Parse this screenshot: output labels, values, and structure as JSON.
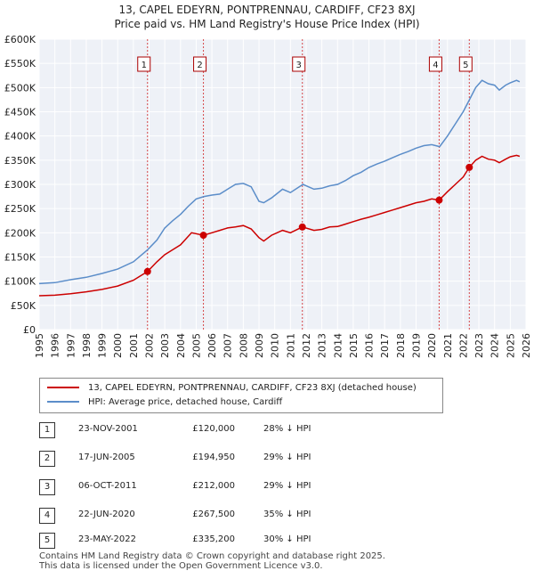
{
  "title_line1": "13, CAPEL EDEYRN, PONTPRENNAU, CARDIFF, CF23 8XJ",
  "title_line2": "Price paid vs. HM Land Registry's House Price Index (HPI)",
  "legend": {
    "property_label": "13, CAPEL EDEYRN, PONTPRENNAU, CARDIFF, CF23 8XJ (detached house)",
    "hpi_label": "HPI: Average price, detached house, Cardiff"
  },
  "colors": {
    "property": "#cc0000",
    "hpi": "#5b8dc9",
    "event_line": "#cc0000"
  },
  "chart_data": {
    "type": "line",
    "ylim": [
      0,
      600000
    ],
    "xlim": [
      1995,
      2026
    ],
    "y_ticks": [
      {
        "value": 0,
        "label": "£0"
      },
      {
        "value": 50000,
        "label": "£50K"
      },
      {
        "value": 100000,
        "label": "£100K"
      },
      {
        "value": 150000,
        "label": "£150K"
      },
      {
        "value": 200000,
        "label": "£200K"
      },
      {
        "value": 250000,
        "label": "£250K"
      },
      {
        "value": 300000,
        "label": "£300K"
      },
      {
        "value": 350000,
        "label": "£350K"
      },
      {
        "value": 400000,
        "label": "£400K"
      },
      {
        "value": 450000,
        "label": "£450K"
      },
      {
        "value": 500000,
        "label": "£500K"
      },
      {
        "value": 550000,
        "label": "£550K"
      },
      {
        "value": 600000,
        "label": "£600K"
      }
    ],
    "x_ticks": [
      "1995",
      "1996",
      "1997",
      "1998",
      "1999",
      "2000",
      "2001",
      "2002",
      "2003",
      "2004",
      "2005",
      "2006",
      "2007",
      "2008",
      "2009",
      "2010",
      "2011",
      "2012",
      "2013",
      "2014",
      "2015",
      "2016",
      "2017",
      "2018",
      "2019",
      "2020",
      "2021",
      "2022",
      "2023",
      "2024",
      "2025",
      "2026"
    ],
    "series": [
      {
        "name": "HPI: Average price, detached house, Cardiff",
        "color": "#5b8dc9",
        "points": [
          [
            1995.0,
            95000
          ],
          [
            1996.0,
            97000
          ],
          [
            1997.0,
            103000
          ],
          [
            1998.0,
            108000
          ],
          [
            1999.0,
            116000
          ],
          [
            2000.0,
            125000
          ],
          [
            2001.0,
            140000
          ],
          [
            2001.9,
            165000
          ],
          [
            2002.5,
            185000
          ],
          [
            2003.0,
            210000
          ],
          [
            2003.5,
            225000
          ],
          [
            2004.0,
            238000
          ],
          [
            2004.5,
            255000
          ],
          [
            2005.0,
            270000
          ],
          [
            2005.5,
            275000
          ],
          [
            2006.0,
            278000
          ],
          [
            2006.5,
            280000
          ],
          [
            2007.0,
            290000
          ],
          [
            2007.5,
            300000
          ],
          [
            2008.0,
            302000
          ],
          [
            2008.5,
            295000
          ],
          [
            2009.0,
            265000
          ],
          [
            2009.3,
            262000
          ],
          [
            2009.8,
            272000
          ],
          [
            2010.5,
            290000
          ],
          [
            2011.0,
            283000
          ],
          [
            2011.8,
            300000
          ],
          [
            2012.5,
            290000
          ],
          [
            2013.0,
            292000
          ],
          [
            2013.5,
            297000
          ],
          [
            2014.0,
            300000
          ],
          [
            2014.5,
            308000
          ],
          [
            2015.0,
            318000
          ],
          [
            2015.5,
            325000
          ],
          [
            2016.0,
            335000
          ],
          [
            2016.5,
            342000
          ],
          [
            2017.0,
            348000
          ],
          [
            2017.5,
            355000
          ],
          [
            2018.0,
            362000
          ],
          [
            2018.5,
            368000
          ],
          [
            2019.0,
            375000
          ],
          [
            2019.5,
            380000
          ],
          [
            2020.0,
            382000
          ],
          [
            2020.5,
            378000
          ],
          [
            2021.0,
            400000
          ],
          [
            2021.5,
            425000
          ],
          [
            2022.0,
            450000
          ],
          [
            2022.4,
            475000
          ],
          [
            2022.8,
            500000
          ],
          [
            2023.2,
            515000
          ],
          [
            2023.6,
            508000
          ],
          [
            2024.0,
            505000
          ],
          [
            2024.3,
            495000
          ],
          [
            2024.7,
            505000
          ],
          [
            2025.0,
            510000
          ],
          [
            2025.4,
            515000
          ],
          [
            2025.6,
            512000
          ]
        ]
      },
      {
        "name": "13, CAPEL EDEYRN, PONTPRENNAU, CARDIFF, CF23 8XJ (detached house)",
        "color": "#cc0000",
        "points": [
          [
            1995.0,
            70000
          ],
          [
            1996.0,
            71000
          ],
          [
            1997.0,
            74000
          ],
          [
            1998.0,
            78000
          ],
          [
            1999.0,
            83000
          ],
          [
            2000.0,
            90000
          ],
          [
            2001.0,
            102000
          ],
          [
            2001.9,
            120000
          ],
          [
            2002.5,
            140000
          ],
          [
            2003.0,
            155000
          ],
          [
            2003.5,
            165000
          ],
          [
            2004.0,
            175000
          ],
          [
            2004.7,
            200000
          ],
          [
            2005.46,
            194950
          ],
          [
            2006.0,
            200000
          ],
          [
            2006.5,
            205000
          ],
          [
            2007.0,
            210000
          ],
          [
            2007.5,
            212000
          ],
          [
            2008.0,
            215000
          ],
          [
            2008.5,
            208000
          ],
          [
            2009.0,
            190000
          ],
          [
            2009.3,
            183000
          ],
          [
            2009.8,
            195000
          ],
          [
            2010.5,
            205000
          ],
          [
            2011.0,
            200000
          ],
          [
            2011.76,
            212000
          ],
          [
            2012.5,
            205000
          ],
          [
            2013.0,
            207000
          ],
          [
            2013.5,
            212000
          ],
          [
            2014.0,
            213000
          ],
          [
            2014.5,
            218000
          ],
          [
            2015.0,
            223000
          ],
          [
            2015.5,
            228000
          ],
          [
            2016.0,
            232000
          ],
          [
            2016.5,
            237000
          ],
          [
            2017.0,
            242000
          ],
          [
            2017.5,
            247000
          ],
          [
            2018.0,
            252000
          ],
          [
            2018.5,
            257000
          ],
          [
            2019.0,
            262000
          ],
          [
            2019.5,
            265000
          ],
          [
            2020.0,
            270000
          ],
          [
            2020.47,
            267500
          ],
          [
            2021.0,
            285000
          ],
          [
            2021.5,
            300000
          ],
          [
            2022.0,
            315000
          ],
          [
            2022.39,
            335200
          ],
          [
            2022.8,
            350000
          ],
          [
            2023.2,
            358000
          ],
          [
            2023.6,
            352000
          ],
          [
            2024.0,
            350000
          ],
          [
            2024.3,
            345000
          ],
          [
            2024.7,
            352000
          ],
          [
            2025.0,
            357000
          ],
          [
            2025.4,
            360000
          ],
          [
            2025.6,
            358000
          ]
        ]
      }
    ],
    "events": [
      {
        "id": "1",
        "x": 2001.9,
        "price": 120000
      },
      {
        "id": "2",
        "x": 2005.46,
        "price": 194950
      },
      {
        "id": "3",
        "x": 2011.76,
        "price": 212000
      },
      {
        "id": "4",
        "x": 2020.47,
        "price": 267500
      },
      {
        "id": "5",
        "x": 2022.39,
        "price": 335200
      }
    ]
  },
  "transactions": [
    {
      "num": "1",
      "date": "23-NOV-2001",
      "price": "£120,000",
      "hpi": "28% ↓ HPI"
    },
    {
      "num": "2",
      "date": "17-JUN-2005",
      "price": "£194,950",
      "hpi": "29% ↓ HPI"
    },
    {
      "num": "3",
      "date": "06-OCT-2011",
      "price": "£212,000",
      "hpi": "29% ↓ HPI"
    },
    {
      "num": "4",
      "date": "22-JUN-2020",
      "price": "£267,500",
      "hpi": "35% ↓ HPI"
    },
    {
      "num": "5",
      "date": "23-MAY-2022",
      "price": "£335,200",
      "hpi": "30% ↓ HPI"
    }
  ],
  "footer_line1": "Contains HM Land Registry data © Crown copyright and database right 2025.",
  "footer_line2": "This data is licensed under the Open Government Licence v3.0."
}
